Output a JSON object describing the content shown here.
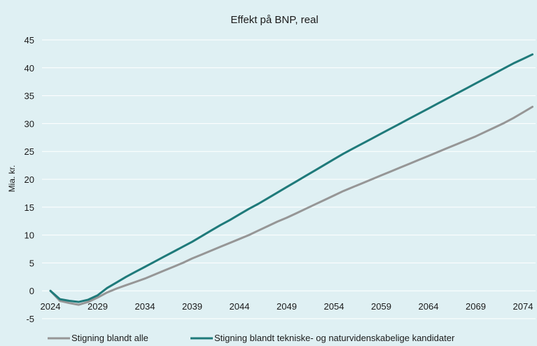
{
  "chart_data": {
    "type": "line",
    "title": "Effekt på BNP, real",
    "xlabel": "",
    "ylabel": "Mia. kr.",
    "xlim": [
      2024,
      2075
    ],
    "ylim": [
      -5,
      45
    ],
    "y_ticks": [
      -5,
      0,
      5,
      10,
      15,
      20,
      25,
      30,
      35,
      40,
      45
    ],
    "x_ticks": [
      2024,
      2029,
      2034,
      2039,
      2044,
      2049,
      2054,
      2059,
      2064,
      2069,
      2074
    ],
    "grid": "horizontal",
    "legend_position": "bottom",
    "x": [
      2024,
      2025,
      2026,
      2027,
      2028,
      2029,
      2030,
      2031,
      2032,
      2033,
      2034,
      2035,
      2036,
      2037,
      2038,
      2039,
      2040,
      2041,
      2042,
      2043,
      2044,
      2045,
      2046,
      2047,
      2048,
      2049,
      2050,
      2051,
      2052,
      2053,
      2054,
      2055,
      2056,
      2057,
      2058,
      2059,
      2060,
      2061,
      2062,
      2063,
      2064,
      2065,
      2066,
      2067,
      2068,
      2069,
      2070,
      2071,
      2072,
      2073,
      2074,
      2075
    ],
    "series": [
      {
        "name": "Stigning blandt alle",
        "color": "#969696",
        "values": [
          0,
          -1.8,
          -2.2,
          -2.5,
          -2.0,
          -1.2,
          -0.3,
          0.4,
          1.0,
          1.6,
          2.2,
          2.9,
          3.6,
          4.3,
          5.0,
          5.8,
          6.5,
          7.2,
          7.9,
          8.6,
          9.3,
          10.0,
          10.8,
          11.6,
          12.4,
          13.1,
          13.9,
          14.7,
          15.5,
          16.3,
          17.1,
          17.9,
          18.6,
          19.3,
          20.0,
          20.7,
          21.4,
          22.1,
          22.8,
          23.5,
          24.2,
          24.9,
          25.6,
          26.3,
          27.0,
          27.7,
          28.5,
          29.3,
          30.1,
          31.0,
          32.0,
          33.0
        ]
      },
      {
        "name": "Stigning blandt tekniske- og naturvidenskabelige kandidater",
        "color": "#1f7a7a",
        "values": [
          0,
          -1.5,
          -1.8,
          -2.0,
          -1.6,
          -0.8,
          0.5,
          1.5,
          2.5,
          3.4,
          4.3,
          5.2,
          6.1,
          7.0,
          7.9,
          8.8,
          9.8,
          10.8,
          11.8,
          12.7,
          13.7,
          14.7,
          15.6,
          16.6,
          17.6,
          18.6,
          19.6,
          20.6,
          21.6,
          22.6,
          23.6,
          24.6,
          25.5,
          26.4,
          27.3,
          28.2,
          29.1,
          30.0,
          30.9,
          31.8,
          32.7,
          33.6,
          34.5,
          35.4,
          36.3,
          37.2,
          38.1,
          39.0,
          39.9,
          40.8,
          41.6,
          42.4
        ]
      }
    ]
  }
}
